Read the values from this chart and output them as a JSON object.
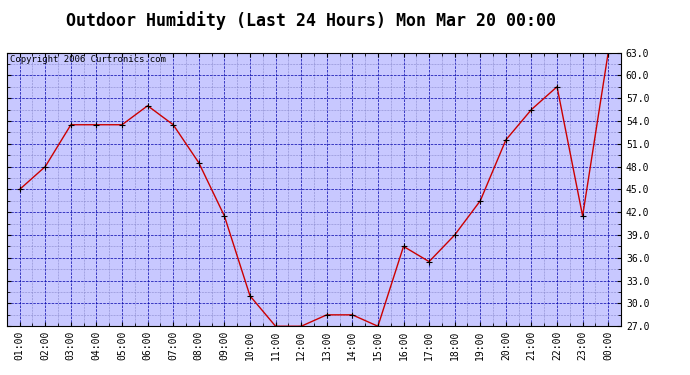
{
  "title": "Outdoor Humidity (Last 24 Hours) Mon Mar 20 00:00",
  "copyright": "Copyright 2006 Curtronics.com",
  "x_labels": [
    "01:00",
    "02:00",
    "03:00",
    "04:00",
    "05:00",
    "06:00",
    "07:00",
    "08:00",
    "09:00",
    "10:00",
    "11:00",
    "12:00",
    "13:00",
    "14:00",
    "15:00",
    "16:00",
    "17:00",
    "18:00",
    "19:00",
    "20:00",
    "21:00",
    "22:00",
    "23:00",
    "00:00"
  ],
  "y_values": [
    45.0,
    48.0,
    53.5,
    53.5,
    53.5,
    56.0,
    53.5,
    48.5,
    41.5,
    31.0,
    27.0,
    27.0,
    28.5,
    28.5,
    27.0,
    37.5,
    35.5,
    39.0,
    43.5,
    51.5,
    55.5,
    58.5,
    41.5,
    63.0
  ],
  "y_min": 27.0,
  "y_max": 63.0,
  "y_ticks": [
    27.0,
    30.0,
    33.0,
    36.0,
    39.0,
    42.0,
    45.0,
    48.0,
    51.0,
    54.0,
    57.0,
    60.0,
    63.0
  ],
  "line_color": "#cc0000",
  "marker_color": "#000000",
  "plot_bg_color": "#c8c8ff",
  "outer_bg_color": "#ffffff",
  "grid_color_major": "#0000aa",
  "grid_color_minor": "#8888cc",
  "title_fontsize": 12,
  "copyright_fontsize": 6.5,
  "tick_fontsize": 7,
  "ylabel_fontsize": 7
}
